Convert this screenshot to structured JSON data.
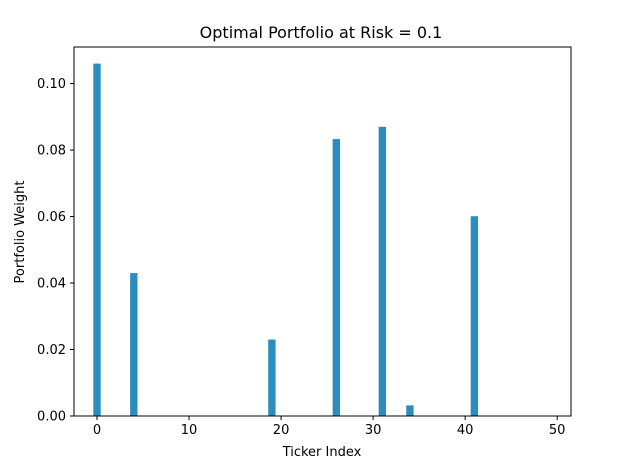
{
  "chart_data": {
    "type": "bar",
    "title": "Optimal Portfolio at Risk = 0.1",
    "xlabel": "Ticker Index",
    "ylabel": "Portfolio Weight",
    "x": [
      0,
      4,
      19,
      26,
      31,
      34,
      41
    ],
    "values": [
      0.106,
      0.043,
      0.023,
      0.0833,
      0.087,
      0.0032,
      0.0601
    ],
    "bar_width": 0.8,
    "xlim": [
      -2.5,
      51.5
    ],
    "ylim": [
      0,
      0.111
    ],
    "xticks": [
      0,
      10,
      20,
      30,
      40,
      50
    ],
    "xtick_labels": [
      "0",
      "10",
      "20",
      "30",
      "40",
      "50"
    ],
    "yticks": [
      0,
      0.02,
      0.04,
      0.06,
      0.08,
      0.1
    ],
    "ytick_labels": [
      "0.00",
      "0.02",
      "0.04",
      "0.06",
      "0.08",
      "0.10"
    ],
    "grid": false,
    "bar_color": "#2b8cbe"
  }
}
